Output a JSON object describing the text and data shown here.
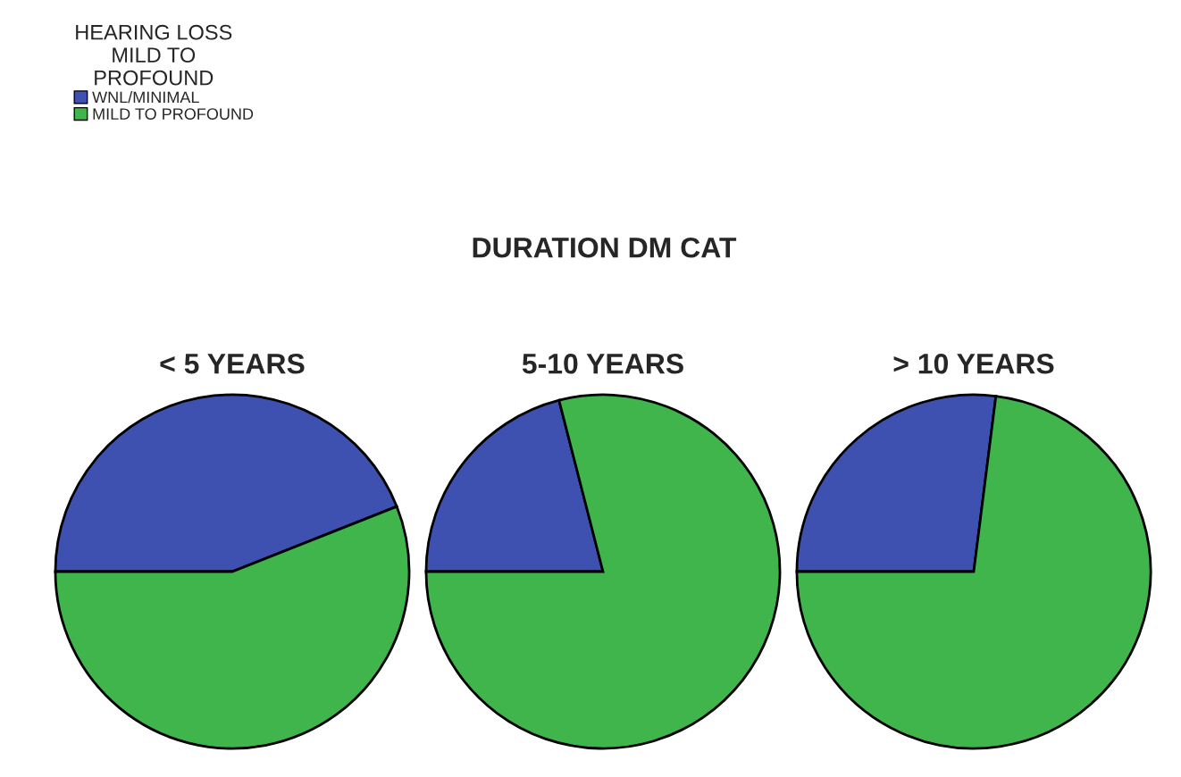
{
  "chart_data": [
    {
      "type": "pie",
      "title": "< 5 YEARS",
      "categories": [
        "WNL/MINIMAL",
        "MILD TO PROFOUND"
      ],
      "values": [
        44,
        56
      ],
      "colors": [
        "#3f51b0",
        "#3fb54b"
      ],
      "legend": "top left",
      "legend_title": "HEARING LOSS\nMILD TO\nPROFOUND",
      "annotations": [
        "DURATION DM CAT"
      ]
    },
    {
      "type": "pie",
      "title": "5-10 YEARS",
      "categories": [
        null,
        null
      ],
      "values": [
        21,
        79
      ],
      "colors": [
        "#3f51b0",
        "#3fb54b"
      ]
    },
    {
      "type": "pie",
      "title": "> 10 YEARS",
      "categories": [
        null,
        null
      ],
      "values": [
        27,
        73
      ],
      "colors": [
        "#3f51b0",
        "#3fb54b"
      ]
    }
  ]
}
